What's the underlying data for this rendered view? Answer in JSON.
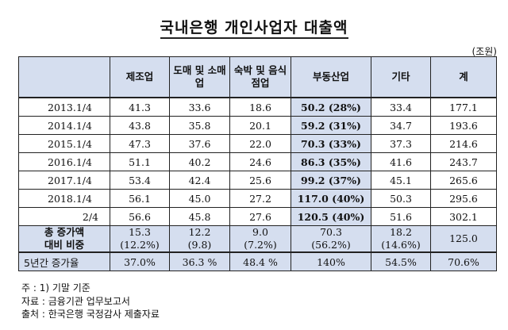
{
  "title": "국내은행 개인사업자 대출액",
  "unit": "(조원)",
  "headers": [
    "",
    "제조업",
    "도매 및 소매업",
    "숙박 및 음식점업",
    "부동산업",
    "기타",
    "계"
  ],
  "rows": [
    {
      "label": "2013.1/4",
      "values": [
        "41.3",
        "33.6",
        "18.6",
        "50.2 (28%)",
        "33.4",
        "177.1"
      ]
    },
    {
      "label": "2014.1/4",
      "values": [
        "43.8",
        "35.8",
        "20.1",
        "59.2 (31%)",
        "34.7",
        "193.6"
      ]
    },
    {
      "label": "2015.1/4",
      "values": [
        "47.3",
        "37.6",
        "22.0",
        "70.3 (33%)",
        "37.3",
        "214.6"
      ]
    },
    {
      "label": "2016.1/4",
      "values": [
        "51.1",
        "40.2",
        "24.6",
        "86.3 (35%)",
        "41.6",
        "243.7"
      ]
    },
    {
      "label": "2017.1/4",
      "values": [
        "53.4",
        "42.4",
        "25.6",
        "99.2 (37%)",
        "45.1",
        "265.6"
      ]
    },
    {
      "label": "2018.1/4",
      "values": [
        "56.1",
        "45.0",
        "27.2",
        "117.0 (40%)",
        "50.3",
        "295.6"
      ]
    },
    {
      "label": "2/4",
      "values": [
        "56.6",
        "45.8",
        "27.6",
        "120.5 (40%)",
        "51.6",
        "302.1"
      ]
    }
  ],
  "summary": {
    "label_line1": "총 증가액",
    "label_line2": "대비 비중",
    "values": [
      {
        "line1": "15.3",
        "line2": "(12.2%)"
      },
      {
        "line1": "12.2",
        "line2": "(9.8)"
      },
      {
        "line1": "9.0",
        "line2": "(7.2%)"
      },
      {
        "line1": "70.3",
        "line2": "(56.2%)"
      },
      {
        "line1": "18.2",
        "line2": "(14.6%)"
      },
      {
        "line1": "125.0",
        "line2": ""
      }
    ]
  },
  "growth": {
    "label": "5년간 증가율",
    "values": [
      "37.0%",
      "36.3 %",
      "48.4 %",
      "140%",
      "54.5%",
      "70.6%"
    ]
  },
  "notes": [
    "주 : 1) 기말 기준",
    "자료 : 금융기관 업무보고서",
    "출처 : 한국은행 국정감사 제출자료"
  ],
  "colors": {
    "header_fill": "#d5deef",
    "border": "#222222"
  }
}
